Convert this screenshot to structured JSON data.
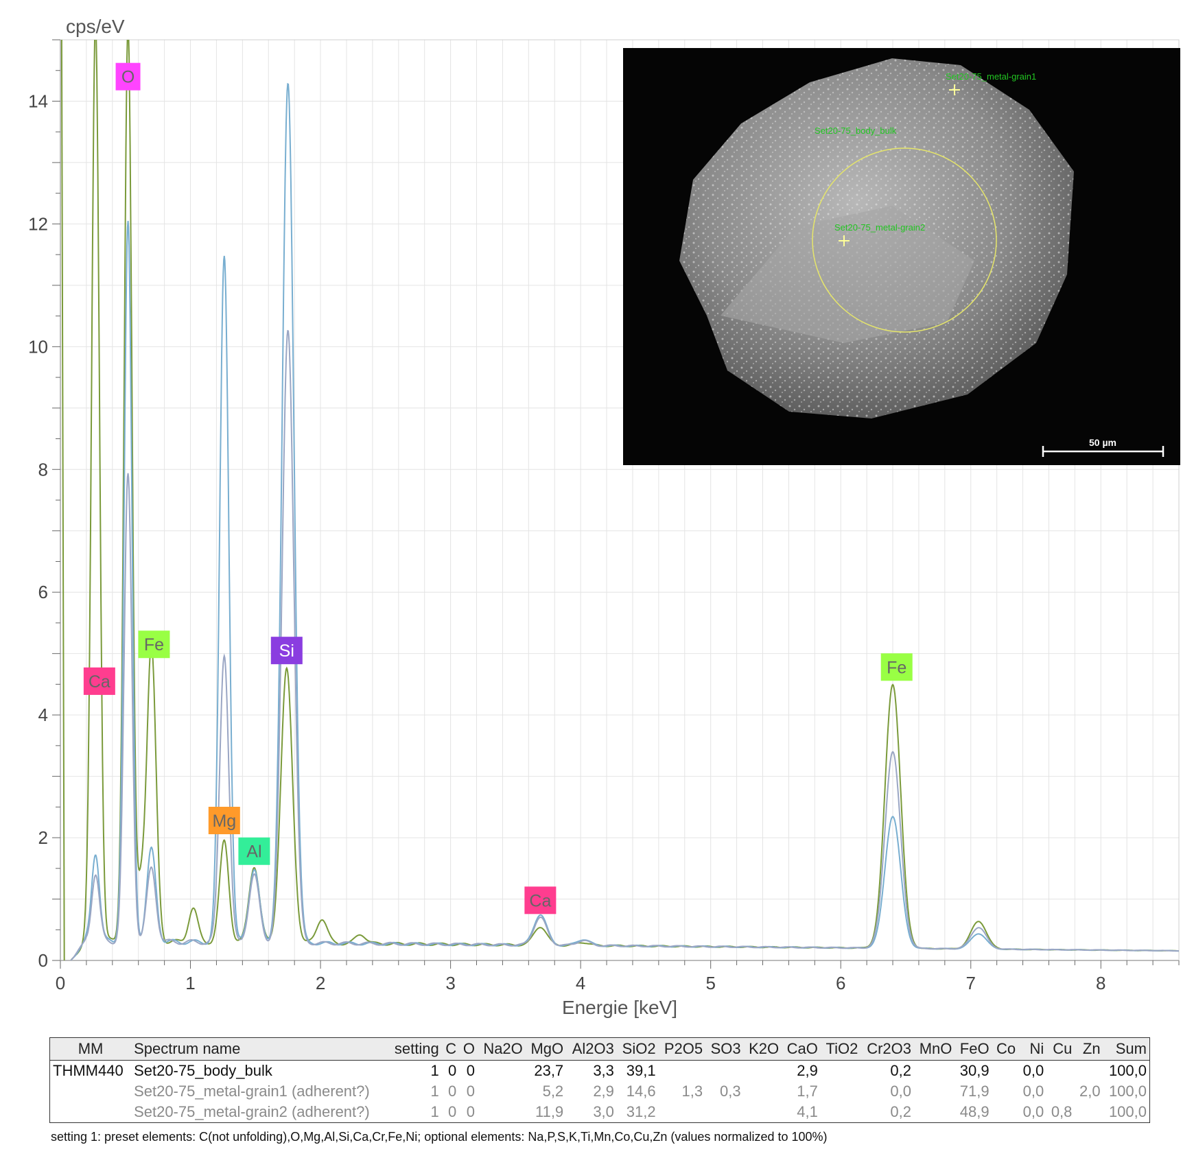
{
  "chart_data": {
    "type": "line",
    "title": "",
    "xlabel": "Energie [keV]",
    "ylabel": "cps/eV",
    "xlim": [
      0,
      8.6
    ],
    "ylim": [
      0,
      15
    ],
    "x_ticks": [
      0,
      1,
      2,
      3,
      4,
      5,
      6,
      7,
      8
    ],
    "y_ticks": [
      0,
      2,
      4,
      6,
      8,
      10,
      12,
      14
    ],
    "grid": true,
    "background": 0.3,
    "series": [
      {
        "color": "#7a9a3a",
        "peaks": [
          [
            0.27,
            15.0,
            0.03
          ],
          [
            0.52,
            14.9,
            0.03
          ],
          [
            0.7,
            4.8,
            0.035
          ],
          [
            0.62,
            0.9,
            0.03
          ],
          [
            1.02,
            0.55,
            0.035
          ],
          [
            1.26,
            1.65,
            0.035
          ],
          [
            1.49,
            1.25,
            0.04
          ],
          [
            1.74,
            4.45,
            0.045
          ],
          [
            2.01,
            0.4,
            0.04
          ],
          [
            2.31,
            0.15,
            0.04
          ],
          [
            3.69,
            0.3,
            0.05
          ],
          [
            4.02,
            0.05,
            0.05
          ],
          [
            6.4,
            4.3,
            0.06
          ],
          [
            7.06,
            0.45,
            0.06
          ]
        ]
      },
      {
        "color": "#78aed0",
        "peaks": [
          [
            0.27,
            1.45,
            0.03
          ],
          [
            0.52,
            11.7,
            0.03
          ],
          [
            0.7,
            1.5,
            0.035
          ],
          [
            1.26,
            11.2,
            0.035
          ],
          [
            1.49,
            1.2,
            0.04
          ],
          [
            1.75,
            14.0,
            0.045
          ],
          [
            3.69,
            0.5,
            0.05
          ],
          [
            4.02,
            0.1,
            0.05
          ],
          [
            6.4,
            2.15,
            0.06
          ],
          [
            7.06,
            0.25,
            0.06
          ]
        ]
      },
      {
        "color": "#9aa6c4",
        "peaks": [
          [
            0.27,
            1.1,
            0.03
          ],
          [
            0.52,
            7.6,
            0.03
          ],
          [
            0.7,
            1.2,
            0.035
          ],
          [
            1.26,
            4.7,
            0.035
          ],
          [
            1.49,
            1.1,
            0.04
          ],
          [
            1.75,
            10.0,
            0.045
          ],
          [
            3.69,
            0.45,
            0.05
          ],
          [
            4.02,
            0.08,
            0.05
          ],
          [
            6.4,
            3.2,
            0.06
          ],
          [
            7.06,
            0.35,
            0.06
          ]
        ]
      }
    ],
    "annotations": [
      {
        "text": "O",
        "x": 0.52,
        "y": 14.4,
        "bg": "#ff44ff"
      },
      {
        "text": "Ca",
        "x": 0.3,
        "y": 4.55,
        "bg": "#ff3d8f"
      },
      {
        "text": "Fe",
        "x": 0.72,
        "y": 5.15,
        "bg": "#99ff44"
      },
      {
        "text": "Si",
        "x": 1.74,
        "y": 5.05,
        "bg": "#8a3de0",
        "fg": "#ffffff"
      },
      {
        "text": "Mg",
        "x": 1.26,
        "y": 2.28,
        "bg": "#ff9a2a"
      },
      {
        "text": "Al",
        "x": 1.49,
        "y": 1.78,
        "bg": "#33ee99"
      },
      {
        "text": "Ca",
        "x": 3.69,
        "y": 0.98,
        "bg": "#ff3d8f"
      },
      {
        "text": "Fe",
        "x": 6.43,
        "y": 4.78,
        "bg": "#99ff44"
      }
    ]
  },
  "inset": {
    "point_labels": [
      "Set20-75_metal-grain1",
      "Set20-75_body_bulk",
      "Set20-75_metal-grain2"
    ],
    "scale_bar": "50 µm"
  },
  "table": {
    "headers": [
      "MM",
      "Spectrum name",
      "setting",
      "C",
      "O",
      "Na2O",
      "MgO",
      "Al2O3",
      "SiO2",
      "P2O5",
      "SO3",
      "K2O",
      "CaO",
      "TiO2",
      "Cr2O3",
      "MnO",
      "FeO",
      "Co",
      "Ni",
      "Cu",
      "Zn",
      "Sum"
    ],
    "rows": [
      [
        "THMM440",
        "Set20-75_body_bulk",
        "1",
        "0",
        "0",
        "",
        "23,7",
        "3,3",
        "39,1",
        "",
        "",
        "",
        "2,9",
        "",
        "0,2",
        "",
        "30,9",
        "",
        "0,0",
        "",
        "",
        "100,0"
      ],
      [
        "",
        "Set20-75_metal-grain1 (adherent?)",
        "1",
        "0",
        "0",
        "",
        "5,2",
        "2,9",
        "14,6",
        "1,3",
        "0,3",
        "",
        "1,7",
        "",
        "0,0",
        "",
        "71,9",
        "",
        "0,0",
        "",
        "2,0",
        "100,0"
      ],
      [
        "",
        "Set20-75_metal-grain2 (adherent?)",
        "1",
        "0",
        "0",
        "",
        "11,9",
        "3,0",
        "31,2",
        "",
        "",
        "",
        "4,1",
        "",
        "0,2",
        "",
        "48,9",
        "",
        "0,0",
        "0,8",
        "",
        "100,0"
      ]
    ]
  },
  "footnote": "setting 1: preset elements: C(not unfolding),O,Mg,Al,Si,Ca,Cr,Fe,Ni; optional elements: Na,P,S,K,Ti,Mn,Co,Cu,Zn (values normalized to 100%)"
}
